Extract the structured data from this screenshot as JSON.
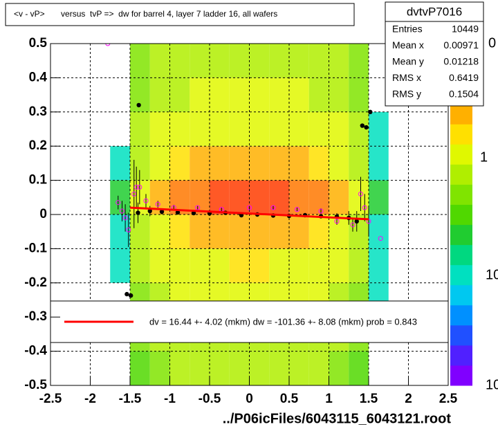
{
  "chart_data": {
    "type": "heatmap-profile",
    "title": "<v - vP>       versus  tvP =>  dw for barrel 4, layer 7 ladder 16, all wafers",
    "x_label": "../P06icFiles/6043115_6043121.root",
    "xlim": [
      -2.5,
      2.5
    ],
    "ylim": [
      -0.5,
      0.5
    ],
    "xticks": [
      -2.5,
      -2,
      -1.5,
      -1,
      -0.5,
      0,
      0.5,
      1,
      1.5,
      2,
      2.5
    ],
    "yticks": [
      -0.5,
      -0.4,
      -0.3,
      -0.2,
      -0.1,
      0,
      0.1,
      0.2,
      0.3,
      0.4,
      0.5
    ],
    "grid": true,
    "stats": {
      "title": "dvtvP7016",
      "rows": [
        [
          "Entries",
          10449
        ],
        [
          "Mean x",
          0.00971
        ],
        [
          "Mean y",
          0.01218
        ],
        [
          "RMS x",
          0.6419
        ],
        [
          "RMS y",
          0.1504
        ]
      ]
    },
    "zlim": [
      0.01,
      10
    ],
    "log_z": true,
    "zaxis_labels": [
      "0",
      "1",
      "10",
      "10"
    ],
    "palette": [
      "#8000ff",
      "#5020ff",
      "#2050ff",
      "#0090ff",
      "#00c8f0",
      "#00e0c0",
      "#00d880",
      "#20cc30",
      "#50d800",
      "#80e400",
      "#b0ee00",
      "#e0f800",
      "#ffe000",
      "#ffb000",
      "#ff7800",
      "#ff3c00",
      "#ff0000"
    ],
    "heatmap": {
      "xbins": [
        -1.75,
        -1.5,
        -1.25,
        -1,
        -0.75,
        -0.5,
        -0.25,
        0,
        0.25,
        0.5,
        0.75,
        1,
        1.25,
        1.5,
        1.75
      ],
      "ybins": [
        -0.5,
        -0.4,
        -0.3,
        -0.2,
        -0.1,
        0,
        0.1,
        0.2,
        0.3,
        0.4,
        0.5
      ],
      "z": [
        [
          0,
          0.3,
          0.5,
          0.6,
          0.6,
          0.6,
          0.7,
          0.7,
          0.6,
          0.6,
          0.6,
          0.5,
          0.3,
          0
        ],
        [
          0,
          0.4,
          0.6,
          0.7,
          0.8,
          0.8,
          0.8,
          0.8,
          0.8,
          0.8,
          0.7,
          0.6,
          0.4,
          0
        ],
        [
          0,
          0.5,
          0.7,
          0.9,
          1,
          1,
          1,
          1,
          1,
          1,
          0.9,
          0.7,
          0.5,
          0.1
        ],
        [
          0.1,
          0.6,
          0.9,
          1.1,
          1.3,
          1.3,
          1.4,
          1.4,
          1.3,
          1.3,
          1.1,
          0.9,
          0.6,
          0.1
        ],
        [
          0.1,
          0.8,
          1.3,
          1.8,
          2.2,
          2.5,
          2.6,
          2.6,
          2.5,
          2.2,
          1.8,
          1.3,
          0.8,
          0.1
        ],
        [
          0.2,
          1,
          2,
          3,
          4,
          5,
          6,
          6,
          5,
          4,
          3,
          2,
          1,
          0.2
        ],
        [
          0.1,
          0.8,
          1.2,
          1.6,
          2,
          2.3,
          2.5,
          2.5,
          2.3,
          2,
          1.6,
          1.2,
          0.8,
          0.1
        ],
        [
          0,
          0.6,
          0.9,
          1,
          1.2,
          1.2,
          1.3,
          1.3,
          1.2,
          1.2,
          1,
          0.9,
          0.6,
          0.1
        ],
        [
          0,
          0.5,
          0.7,
          0.8,
          0.9,
          0.9,
          1,
          1,
          0.9,
          0.9,
          0.8,
          0.7,
          0.5,
          0
        ],
        [
          0,
          0.4,
          0.6,
          0.6,
          0.7,
          0.7,
          0.8,
          0.8,
          0.7,
          0.7,
          0.6,
          0.6,
          0.4,
          0
        ]
      ]
    },
    "series": [
      {
        "color": "#000000",
        "marker": "dot",
        "x": [
          -1.54,
          -1.49,
          -1.39,
          -1.4,
          -1.25,
          -1.1,
          -0.9,
          -0.7,
          -0.5,
          -0.3,
          -0.1,
          0.1,
          0.3,
          0.5,
          0.7,
          0.9,
          1.1,
          1.25,
          1.35,
          1.42,
          1.47,
          1.52
        ],
        "values": [
          -0.233,
          -0.237,
          0.32,
          0.005,
          0.01,
          0.008,
          0.006,
          0.004,
          0.003,
          0.005,
          -0.002,
          0,
          -0.003,
          -0.004,
          -0.002,
          -0.005,
          -0.006,
          -0.01,
          -0.02,
          0.26,
          0.255,
          0.3
        ],
        "errors": [
          0,
          0,
          0,
          0.03,
          0.015,
          0.008,
          0.005,
          0.004,
          0.003,
          0.003,
          0.003,
          0.003,
          0.003,
          0.004,
          0.005,
          0.006,
          0.01,
          0.02,
          0.03,
          0,
          0,
          0
        ]
      },
      {
        "color": "#ff00ff",
        "marker": "circle",
        "x": [
          -1.78,
          -1.65,
          -1.6,
          -1.56,
          -1.52,
          -1.45,
          -1.42,
          -1.38,
          -1.3,
          -1.15,
          -0.95,
          -0.65,
          -0.35,
          0,
          0.3,
          0.6,
          0.9,
          1.1,
          1.3,
          1.4,
          1.45,
          1.5,
          1.65
        ],
        "values": [
          0.5,
          0.035,
          0.01,
          -0.01,
          -0.045,
          0.06,
          0.08,
          0.08,
          0.04,
          0.03,
          0.02,
          0.02,
          0.015,
          0.02,
          0.02,
          0.015,
          0.01,
          -0.02,
          -0.03,
          0.06,
          0.02,
          -0.02,
          -0.07
        ],
        "errors": [
          0,
          0.02,
          0.03,
          0.04,
          0.05,
          0.1,
          0.06,
          0.05,
          0.02,
          0.01,
          0.008,
          0.005,
          0.005,
          0.005,
          0.005,
          0.006,
          0.008,
          0.01,
          0.02,
          0.05,
          0.04,
          0.04,
          0
        ]
      }
    ],
    "fit": {
      "x": [
        -1.5,
        1.5
      ],
      "values": [
        0.02,
        -0.014
      ],
      "color": "#ff0000"
    },
    "legend_text": "dv =   16.44 +-  4.02 (mkm) dw = -101.36 +-  8.08 (mkm) prob = 0.843"
  }
}
